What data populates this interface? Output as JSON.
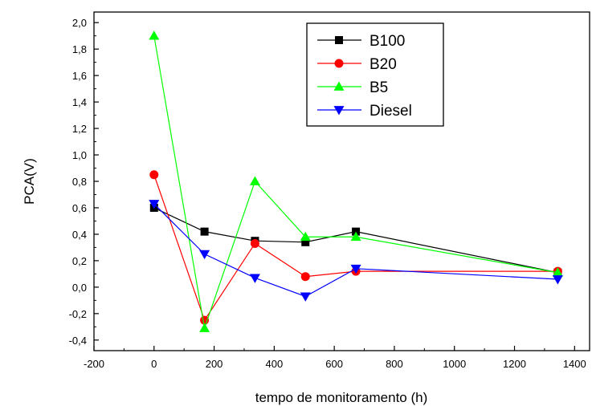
{
  "chart_data": {
    "type": "line",
    "xlabel": "tempo de monitoramento (h)",
    "ylabel": "PCA(V)",
    "xlim": [
      -200,
      1450
    ],
    "ylim": [
      -0.48,
      2.08
    ],
    "x_ticks": [
      "-200",
      "0",
      "200",
      "400",
      "600",
      "800",
      "1000",
      "1200",
      "1400"
    ],
    "x_tick_values": [
      -200,
      0,
      200,
      400,
      600,
      800,
      1000,
      1200,
      1400
    ],
    "y_ticks": [
      "-0,4",
      "-0,2",
      "0,0",
      "0,2",
      "0,4",
      "0,6",
      "0,8",
      "1,0",
      "1,2",
      "1,4",
      "1,6",
      "1,8",
      "2,0"
    ],
    "y_tick_values": [
      -0.4,
      -0.2,
      0.0,
      0.2,
      0.4,
      0.6,
      0.8,
      1.0,
      1.2,
      1.4,
      1.6,
      1.8,
      2.0
    ],
    "grid": false,
    "legend_position": "top-right",
    "series": [
      {
        "name": "B100",
        "color": "#000000",
        "marker": "square",
        "x": [
          0,
          168,
          336,
          504,
          672,
          1344
        ],
        "y": [
          0.6,
          0.42,
          0.35,
          0.34,
          0.42,
          0.11
        ]
      },
      {
        "name": "B20",
        "color": "#ff0000",
        "marker": "circle",
        "x": [
          0,
          168,
          336,
          504,
          672,
          1344
        ],
        "y": [
          0.85,
          -0.25,
          0.33,
          0.08,
          0.12,
          0.12
        ]
      },
      {
        "name": "B5",
        "color": "#00ff00",
        "marker": "triangle-up",
        "x": [
          0,
          168,
          336,
          504,
          672,
          1344
        ],
        "y": [
          1.9,
          -0.31,
          0.8,
          0.38,
          0.38,
          0.11
        ]
      },
      {
        "name": "Diesel",
        "color": "#0000ff",
        "marker": "triangle-down",
        "x": [
          0,
          168,
          336,
          504,
          672,
          1344
        ],
        "y": [
          0.63,
          0.25,
          0.07,
          -0.07,
          0.14,
          0.06
        ]
      }
    ]
  }
}
